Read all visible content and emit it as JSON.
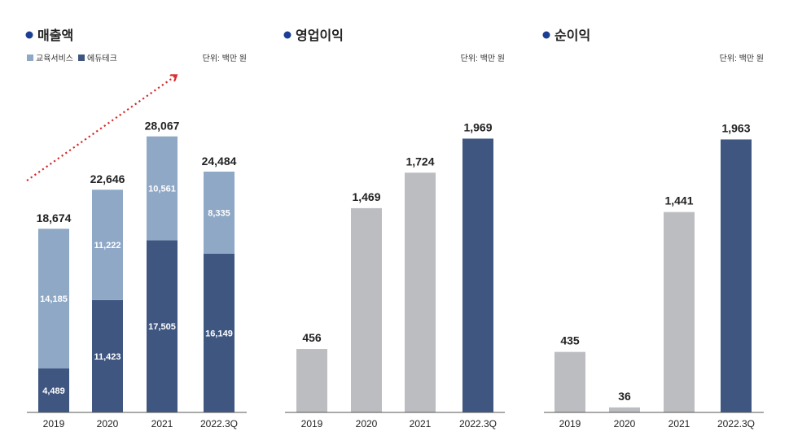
{
  "colors": {
    "edutech": "#3e5680",
    "education_service": "#8ea8c6",
    "past": "#bcbdc1",
    "latest": "#3e5680",
    "bullet": "#1c3f94",
    "arrow": "#d62b2b",
    "baseline": "#555555"
  },
  "chart_data": [
    {
      "type": "bar",
      "stacked": true,
      "title": "매출액",
      "unit": "단위: 백만 원",
      "legend": {
        "position": "top-left",
        "entries": [
          "교육서비스",
          "에듀테크"
        ]
      },
      "categories": [
        "2019",
        "2020",
        "2021",
        "2022.3Q"
      ],
      "series": [
        {
          "name": "에듀테크",
          "values": [
            4489,
            11423,
            17505,
            16149
          ]
        },
        {
          "name": "교육서비스",
          "values": [
            14185,
            11222,
            10561,
            8335
          ]
        }
      ],
      "totals": [
        18674,
        22646,
        28067,
        24484
      ],
      "segment_labels": {
        "edutech": [
          "4,489",
          "11,423",
          "17,505",
          "16,149"
        ],
        "education_service": [
          "14,185",
          "11,222",
          "10,561",
          "8,335"
        ]
      },
      "total_labels": [
        "18,674",
        "22,646",
        "28,067",
        "24,484"
      ],
      "ylim": [
        0,
        28700
      ],
      "grid": false
    },
    {
      "type": "bar",
      "title": "영업이익",
      "unit": "단위: 백만 원",
      "categories": [
        "2019",
        "2020",
        "2021",
        "2022.3Q"
      ],
      "values": [
        456,
        1469,
        1724,
        1969
      ],
      "value_labels": [
        "456",
        "1,469",
        "1,724",
        "1,969"
      ],
      "ylim": [
        0,
        2030
      ],
      "grid": false
    },
    {
      "type": "bar",
      "title": "순이익",
      "unit": "단위: 백만 원",
      "categories": [
        "2019",
        "2020",
        "2021",
        "2022.3Q"
      ],
      "values": [
        435,
        36,
        1441,
        1963
      ],
      "value_labels": [
        "435",
        "36",
        "1,441",
        "1,963"
      ],
      "ylim": [
        0,
        2030
      ],
      "grid": false
    }
  ]
}
